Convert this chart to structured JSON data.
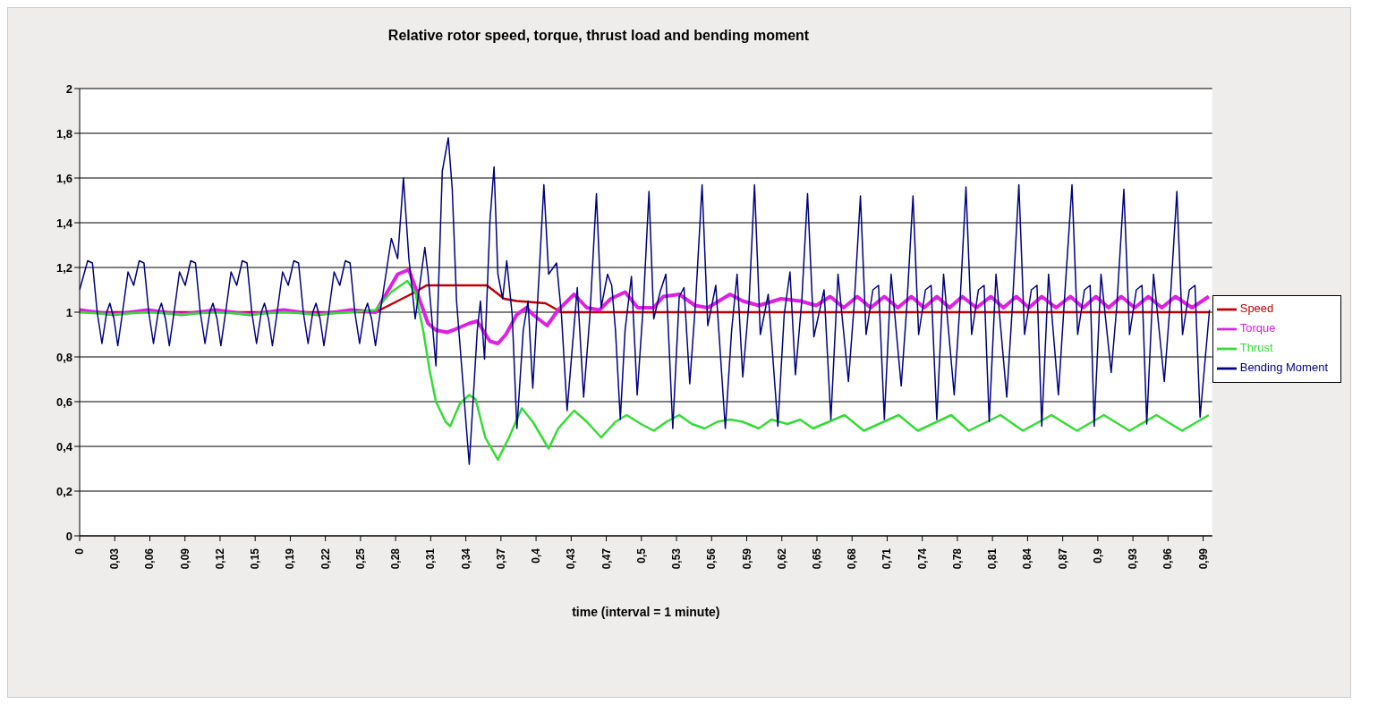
{
  "chart_data": {
    "type": "line",
    "title": "Relative rotor speed, torque, thrust load and bending moment",
    "xlabel": "time (interval = 1 minute)",
    "xlim": [
      0,
      1
    ],
    "xticks": [
      {
        "value": 0,
        "label": "0"
      },
      {
        "value": 0.031,
        "label": "0,03"
      },
      {
        "value": 0.062,
        "label": "0,06"
      },
      {
        "value": 0.093,
        "label": "0,09"
      },
      {
        "value": 0.124,
        "label": "0,12"
      },
      {
        "value": 0.155,
        "label": "0,15"
      },
      {
        "value": 0.186,
        "label": "0,19"
      },
      {
        "value": 0.217,
        "label": "0,22"
      },
      {
        "value": 0.248,
        "label": "0,25"
      },
      {
        "value": 0.279,
        "label": "0,28"
      },
      {
        "value": 0.31,
        "label": "0,31"
      },
      {
        "value": 0.341,
        "label": "0,34"
      },
      {
        "value": 0.372,
        "label": "0,37"
      },
      {
        "value": 0.403,
        "label": "0,4"
      },
      {
        "value": 0.434,
        "label": "0,43"
      },
      {
        "value": 0.465,
        "label": "0,47"
      },
      {
        "value": 0.496,
        "label": "0,5"
      },
      {
        "value": 0.527,
        "label": "0,53"
      },
      {
        "value": 0.558,
        "label": "0,56"
      },
      {
        "value": 0.589,
        "label": "0,59"
      },
      {
        "value": 0.62,
        "label": "0,62"
      },
      {
        "value": 0.651,
        "label": "0,65"
      },
      {
        "value": 0.682,
        "label": "0,68"
      },
      {
        "value": 0.713,
        "label": "0,71"
      },
      {
        "value": 0.744,
        "label": "0,74"
      },
      {
        "value": 0.775,
        "label": "0,78"
      },
      {
        "value": 0.806,
        "label": "0,81"
      },
      {
        "value": 0.837,
        "label": "0,84"
      },
      {
        "value": 0.868,
        "label": "0,87"
      },
      {
        "value": 0.899,
        "label": "0,9"
      },
      {
        "value": 0.93,
        "label": "0,93"
      },
      {
        "value": 0.961,
        "label": "0,96"
      },
      {
        "value": 0.992,
        "label": "0,99"
      }
    ],
    "ylim": [
      0,
      2
    ],
    "yticks": [
      0,
      {
        "value": 0.2,
        "label": "0,2"
      },
      {
        "value": 0.4,
        "label": "0,4"
      },
      {
        "value": 0.6,
        "label": "0,6"
      },
      {
        "value": 0.8,
        "label": "0,8"
      },
      1,
      {
        "value": 1.2,
        "label": "1,2"
      },
      {
        "value": 1.4,
        "label": "1,4"
      },
      {
        "value": 1.6,
        "label": "1,6"
      },
      {
        "value": 1.8,
        "label": "1,8"
      },
      2
    ],
    "grid": "y",
    "legend": "right",
    "marker": "none",
    "series": [
      {
        "name": "Speed",
        "color": "#c00000",
        "x": [
          0,
          0.2612,
          0.2808,
          0.2963,
          0.3062,
          0.3595,
          0.3749,
          0.3861,
          0.4113,
          0.4254,
          0.46,
          0.997
        ],
        "values": [
          1.0,
          1.0,
          1.05,
          1.09,
          1.12,
          1.12,
          1.06,
          1.05,
          1.04,
          1.0,
          1.0,
          1.0
        ]
      },
      {
        "name": "Torque",
        "color": "#e020e0",
        "x": [
          0,
          0.03,
          0.06,
          0.09,
          0.12,
          0.15,
          0.18,
          0.21,
          0.24,
          0.2612,
          0.2808,
          0.2907,
          0.2978,
          0.3076,
          0.3146,
          0.3244,
          0.33,
          0.344,
          0.3511,
          0.3623,
          0.3693,
          0.3763,
          0.3861,
          0.3945,
          0.4001,
          0.4127,
          0.4226,
          0.4366,
          0.4478,
          0.4591,
          0.4689,
          0.4816,
          0.4928,
          0.5069,
          0.5153,
          0.5294,
          0.5434,
          0.5546,
          0.5743,
          0.5855,
          0.5996,
          0.6193,
          0.6362,
          0.6503,
          0.6627,
          0.6746,
          0.6866,
          0.6985,
          0.7105,
          0.7224,
          0.7344,
          0.7456,
          0.7569,
          0.7681,
          0.7793,
          0.7919,
          0.8045,
          0.8157,
          0.827,
          0.8382,
          0.8495,
          0.8621,
          0.8748,
          0.886,
          0.8973,
          0.9085,
          0.9197,
          0.9316,
          0.9436,
          0.9555,
          0.9675,
          0.9822,
          0.997
        ],
        "values": [
          1.01,
          0.99,
          1.01,
          0.99,
          1.01,
          0.99,
          1.01,
          0.99,
          1.01,
          1.0,
          1.17,
          1.19,
          1.09,
          0.95,
          0.92,
          0.91,
          0.92,
          0.95,
          0.96,
          0.87,
          0.86,
          0.9,
          0.99,
          1.02,
          0.99,
          0.94,
          1.01,
          1.08,
          1.02,
          1.01,
          1.06,
          1.09,
          1.02,
          1.02,
          1.07,
          1.08,
          1.03,
          1.02,
          1.08,
          1.05,
          1.03,
          1.06,
          1.05,
          1.03,
          1.07,
          1.02,
          1.07,
          1.02,
          1.07,
          1.02,
          1.07,
          1.02,
          1.07,
          1.02,
          1.07,
          1.02,
          1.07,
          1.02,
          1.07,
          1.02,
          1.07,
          1.02,
          1.07,
          1.02,
          1.07,
          1.02,
          1.07,
          1.02,
          1.07,
          1.02,
          1.07,
          1.02,
          1.07
        ]
      },
      {
        "name": "Thrust",
        "color": "#33dd33",
        "x": [
          0,
          0.03,
          0.06,
          0.09,
          0.12,
          0.15,
          0.18,
          0.21,
          0.24,
          0.2612,
          0.2752,
          0.2893,
          0.2963,
          0.3033,
          0.309,
          0.3146,
          0.3231,
          0.3272,
          0.3356,
          0.344,
          0.3497,
          0.3581,
          0.3693,
          0.3791,
          0.3904,
          0.4001,
          0.4141,
          0.4226,
          0.4366,
          0.4478,
          0.4605,
          0.4731,
          0.483,
          0.4957,
          0.5069,
          0.5181,
          0.5294,
          0.5406,
          0.5518,
          0.563,
          0.5743,
          0.5855,
          0.5996,
          0.6108,
          0.6249,
          0.6362,
          0.6475,
          0.6615,
          0.6754,
          0.6923,
          0.7232,
          0.7401,
          0.7696,
          0.785,
          0.8131,
          0.8328,
          0.8581,
          0.8805,
          0.9044,
          0.9269,
          0.9508,
          0.9733,
          0.997
        ],
        "values": [
          1.0,
          0.99,
          1.0,
          0.99,
          1.0,
          0.99,
          1.0,
          0.99,
          1.0,
          1.01,
          1.09,
          1.14,
          1.09,
          0.92,
          0.74,
          0.6,
          0.51,
          0.49,
          0.59,
          0.63,
          0.61,
          0.44,
          0.34,
          0.44,
          0.57,
          0.51,
          0.39,
          0.48,
          0.56,
          0.51,
          0.44,
          0.51,
          0.54,
          0.5,
          0.47,
          0.51,
          0.54,
          0.5,
          0.48,
          0.51,
          0.52,
          0.51,
          0.48,
          0.52,
          0.5,
          0.52,
          0.48,
          0.51,
          0.54,
          0.47,
          0.54,
          0.47,
          0.54,
          0.47,
          0.54,
          0.47,
          0.54,
          0.47,
          0.54,
          0.47,
          0.54,
          0.47,
          0.54
        ]
      },
      {
        "name": "Bending Moment",
        "color": "#000080",
        "x": [
          0,
          0.0071,
          0.0113,
          0.0155,
          0.0197,
          0.0239,
          0.0267,
          0.0303,
          0.0337,
          0.0379,
          0.0427,
          0.0477,
          0.0526,
          0.0568,
          0.061,
          0.0652,
          0.0694,
          0.0722,
          0.0758,
          0.0792,
          0.0834,
          0.0882,
          0.0932,
          0.0981,
          0.1023,
          0.1065,
          0.1107,
          0.1149,
          0.1177,
          0.1213,
          0.1247,
          0.1289,
          0.1337,
          0.1387,
          0.1436,
          0.1478,
          0.152,
          0.1562,
          0.1604,
          0.1632,
          0.1668,
          0.1702,
          0.1744,
          0.1792,
          0.1842,
          0.1891,
          0.1933,
          0.1975,
          0.2017,
          0.2059,
          0.2087,
          0.2123,
          0.2157,
          0.2199,
          0.2247,
          0.2297,
          0.2346,
          0.2388,
          0.243,
          0.2472,
          0.2514,
          0.2542,
          0.2578,
          0.2612,
          0.2654,
          0.2752,
          0.2808,
          0.2859,
          0.2907,
          0.2963,
          0.3048,
          0.3076,
          0.3146,
          0.3202,
          0.3255,
          0.329,
          0.3328,
          0.344,
          0.3483,
          0.3511,
          0.3539,
          0.3575,
          0.3623,
          0.3659,
          0.3693,
          0.3735,
          0.3771,
          0.3819,
          0.3861,
          0.3917,
          0.3959,
          0.4001,
          0.4057,
          0.4099,
          0.4141,
          0.4211,
          0.4254,
          0.4304,
          0.4394,
          0.445,
          0.4506,
          0.4563,
          0.4605,
          0.4661,
          0.4698,
          0.4731,
          0.4774,
          0.4816,
          0.4872,
          0.4923,
          0.4979,
          0.5027,
          0.5069,
          0.5125,
          0.5176,
          0.5237,
          0.5294,
          0.5336,
          0.5387,
          0.5439,
          0.5496,
          0.5546,
          0.5617,
          0.5701,
          0.5757,
          0.5805,
          0.5855,
          0.5911,
          0.5959,
          0.601,
          0.608,
          0.6165,
          0.6221,
          0.6272,
          0.632,
          0.6376,
          0.6427,
          0.6483,
          0.6573,
          0.6633,
          0.6696,
          0.6788,
          0.6838,
          0.6894,
          0.6944,
          0.7004,
          0.7054,
          0.7105,
          0.7165,
          0.7254,
          0.7304,
          0.7358,
          0.7408,
          0.7468,
          0.7518,
          0.7568,
          0.7628,
          0.7722,
          0.7772,
          0.7826,
          0.7876,
          0.7936,
          0.7986,
          0.8031,
          0.8091,
          0.8186,
          0.8236,
          0.8293,
          0.8343,
          0.8403,
          0.8453,
          0.8495,
          0.8555,
          0.8642,
          0.8692,
          0.8762,
          0.8812,
          0.8872,
          0.8922,
          0.8958,
          0.9018,
          0.9108,
          0.9158,
          0.922,
          0.927,
          0.933,
          0.938,
          0.9422,
          0.9482,
          0.9577,
          0.9627,
          0.9688,
          0.9738,
          0.9798,
          0.9848,
          0.9893,
          0.9976
        ],
        "values": [
          1.1,
          1.23,
          1.22,
          1.0,
          0.86,
          1.0,
          1.04,
          0.97,
          0.85,
          1.0,
          1.18,
          1.12,
          1.23,
          1.22,
          1.0,
          0.86,
          1.0,
          1.04,
          0.97,
          0.85,
          1.0,
          1.18,
          1.12,
          1.23,
          1.22,
          1.0,
          0.86,
          1.0,
          1.04,
          0.97,
          0.85,
          1.0,
          1.18,
          1.12,
          1.23,
          1.22,
          1.0,
          0.86,
          1.0,
          1.04,
          0.97,
          0.85,
          1.0,
          1.18,
          1.12,
          1.23,
          1.22,
          1.0,
          0.86,
          1.0,
          1.04,
          0.97,
          0.85,
          1.0,
          1.18,
          1.12,
          1.23,
          1.22,
          1.0,
          0.86,
          1.0,
          1.04,
          0.97,
          0.85,
          1.0,
          1.33,
          1.24,
          1.6,
          1.24,
          0.97,
          1.29,
          1.17,
          0.76,
          1.63,
          1.78,
          1.55,
          1.05,
          0.32,
          0.68,
          0.92,
          1.05,
          0.79,
          1.41,
          1.65,
          1.17,
          1.06,
          1.23,
          0.99,
          0.48,
          0.92,
          1.05,
          0.66,
          1.17,
          1.57,
          1.17,
          1.22,
          0.99,
          0.56,
          1.11,
          0.62,
          0.99,
          1.53,
          1.02,
          1.17,
          1.12,
          0.92,
          0.52,
          0.92,
          1.16,
          0.63,
          1.05,
          1.54,
          0.97,
          1.09,
          1.17,
          0.48,
          1.07,
          1.11,
          0.68,
          1.05,
          1.57,
          0.94,
          1.12,
          0.48,
          0.92,
          1.17,
          0.71,
          1.05,
          1.57,
          0.9,
          1.08,
          0.49,
          0.99,
          1.18,
          0.72,
          1.05,
          1.53,
          0.89,
          1.1,
          0.52,
          1.17,
          0.69,
          1.03,
          1.52,
          0.9,
          1.1,
          1.12,
          0.52,
          1.17,
          0.67,
          1.03,
          1.52,
          0.9,
          1.1,
          1.12,
          0.52,
          1.17,
          0.63,
          1.03,
          1.56,
          0.9,
          1.1,
          1.12,
          0.51,
          1.17,
          0.62,
          1.03,
          1.57,
          0.9,
          1.1,
          1.12,
          0.49,
          1.17,
          0.63,
          1.03,
          1.57,
          0.9,
          1.1,
          1.12,
          0.49,
          1.17,
          0.73,
          1.03,
          1.55,
          0.9,
          1.1,
          1.12,
          0.5,
          1.17,
          0.69,
          1.03,
          1.54,
          0.9,
          1.1,
          1.12,
          0.53,
          1.01
        ]
      }
    ]
  }
}
